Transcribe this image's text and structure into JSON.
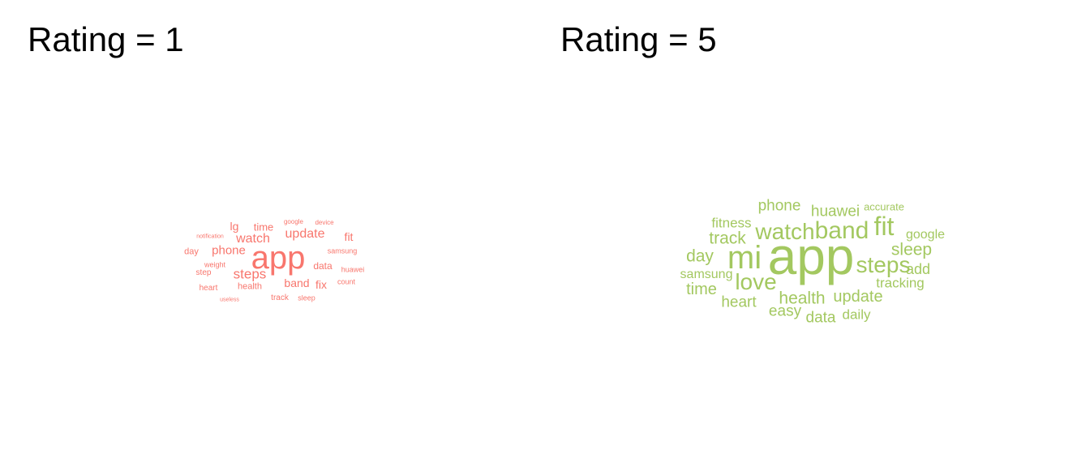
{
  "chart_data": [
    {
      "type": "wordcloud",
      "title": "Rating = 1",
      "color": "#F8766D",
      "words": [
        {
          "text": "app",
          "weight": 1.0
        },
        {
          "text": "steps",
          "weight": 0.42
        },
        {
          "text": "update",
          "weight": 0.4
        },
        {
          "text": "watch",
          "weight": 0.4
        },
        {
          "text": "phone",
          "weight": 0.38
        },
        {
          "text": "fix",
          "weight": 0.36
        },
        {
          "text": "band",
          "weight": 0.35
        },
        {
          "text": "fit",
          "weight": 0.35
        },
        {
          "text": "lg",
          "weight": 0.34
        },
        {
          "text": "time",
          "weight": 0.33
        },
        {
          "text": "data",
          "weight": 0.3
        },
        {
          "text": "health",
          "weight": 0.28
        },
        {
          "text": "day",
          "weight": 0.28
        },
        {
          "text": "step",
          "weight": 0.26
        },
        {
          "text": "heart",
          "weight": 0.25
        },
        {
          "text": "track",
          "weight": 0.24
        },
        {
          "text": "sleep",
          "weight": 0.23
        },
        {
          "text": "weight",
          "weight": 0.23
        },
        {
          "text": "huawei",
          "weight": 0.23
        },
        {
          "text": "samsung",
          "weight": 0.22
        },
        {
          "text": "count",
          "weight": 0.22
        },
        {
          "text": "google",
          "weight": 0.19
        },
        {
          "text": "device",
          "weight": 0.19
        },
        {
          "text": "notification",
          "weight": 0.15
        },
        {
          "text": "useless",
          "weight": 0.15
        }
      ]
    },
    {
      "type": "wordcloud",
      "title": "Rating = 5",
      "color": "#A3C860",
      "words": [
        {
          "text": "app",
          "weight": 1.0
        },
        {
          "text": "mi",
          "weight": 0.62
        },
        {
          "text": "fit",
          "weight": 0.5
        },
        {
          "text": "band",
          "weight": 0.47
        },
        {
          "text": "watch",
          "weight": 0.43
        },
        {
          "text": "steps",
          "weight": 0.43
        },
        {
          "text": "love",
          "weight": 0.43
        },
        {
          "text": "sleep",
          "weight": 0.33
        },
        {
          "text": "track",
          "weight": 0.33
        },
        {
          "text": "day",
          "weight": 0.33
        },
        {
          "text": "health",
          "weight": 0.33
        },
        {
          "text": "update",
          "weight": 0.31
        },
        {
          "text": "time",
          "weight": 0.31
        },
        {
          "text": "phone",
          "weight": 0.3
        },
        {
          "text": "huawei",
          "weight": 0.29
        },
        {
          "text": "heart",
          "weight": 0.29
        },
        {
          "text": "easy",
          "weight": 0.29
        },
        {
          "text": "data",
          "weight": 0.29
        },
        {
          "text": "add",
          "weight": 0.28
        },
        {
          "text": "fitness",
          "weight": 0.27
        },
        {
          "text": "daily",
          "weight": 0.26
        },
        {
          "text": "tracking",
          "weight": 0.26
        },
        {
          "text": "google",
          "weight": 0.25
        },
        {
          "text": "samsung",
          "weight": 0.25
        },
        {
          "text": "accurate",
          "weight": 0.21
        }
      ]
    }
  ]
}
